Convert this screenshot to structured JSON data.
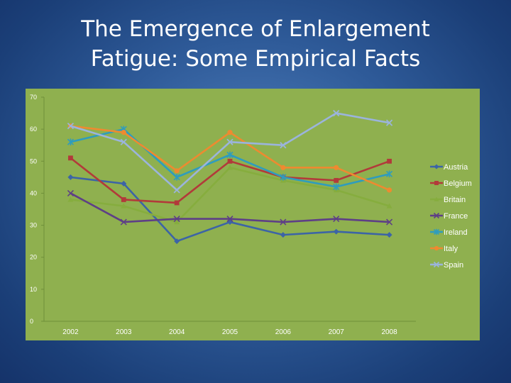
{
  "slide": {
    "title_line1": "The Emergence of Enlargement",
    "title_line2": "Fatigue: Some Empirical Facts"
  },
  "colors": {
    "background": "#2e5a98",
    "chart_area": "#8fb04f",
    "text": "#ffffff"
  },
  "chart_data": {
    "type": "line",
    "title": "",
    "xlabel": "",
    "ylabel": "",
    "categories": [
      "2002",
      "2003",
      "2004",
      "2005",
      "2006",
      "2007",
      "2008"
    ],
    "ylim": [
      0,
      70
    ],
    "yticks": [
      0,
      10,
      20,
      30,
      40,
      50,
      60,
      70
    ],
    "grid": false,
    "legend_position": "right",
    "series": [
      {
        "name": "Austria",
        "values": [
          45,
          43,
          25,
          31,
          27,
          28,
          27
        ],
        "color": "#3c64a6",
        "marker": "diamond"
      },
      {
        "name": "Belgium",
        "values": [
          51,
          38,
          37,
          50,
          45,
          44,
          50
        ],
        "color": "#b23a3a",
        "marker": "square"
      },
      {
        "name": "Britain",
        "values": [
          38,
          36,
          31,
          48,
          44,
          41,
          36
        ],
        "color": "#86ad3e",
        "marker": "triangle"
      },
      {
        "name": "France",
        "values": [
          40,
          31,
          32,
          32,
          31,
          32,
          31
        ],
        "color": "#5e3f86",
        "marker": "x"
      },
      {
        "name": "Ireland",
        "values": [
          56,
          60,
          45,
          52,
          45,
          42,
          46
        ],
        "color": "#2f9cbd",
        "marker": "star"
      },
      {
        "name": "Italy",
        "values": [
          61,
          59,
          47,
          59,
          48,
          48,
          41
        ],
        "color": "#ee8a30",
        "marker": "circle"
      },
      {
        "name": "Spain",
        "values": [
          61,
          56,
          41,
          56,
          55,
          65,
          62
        ],
        "color": "#9bb4dc",
        "marker": "plus"
      }
    ]
  }
}
